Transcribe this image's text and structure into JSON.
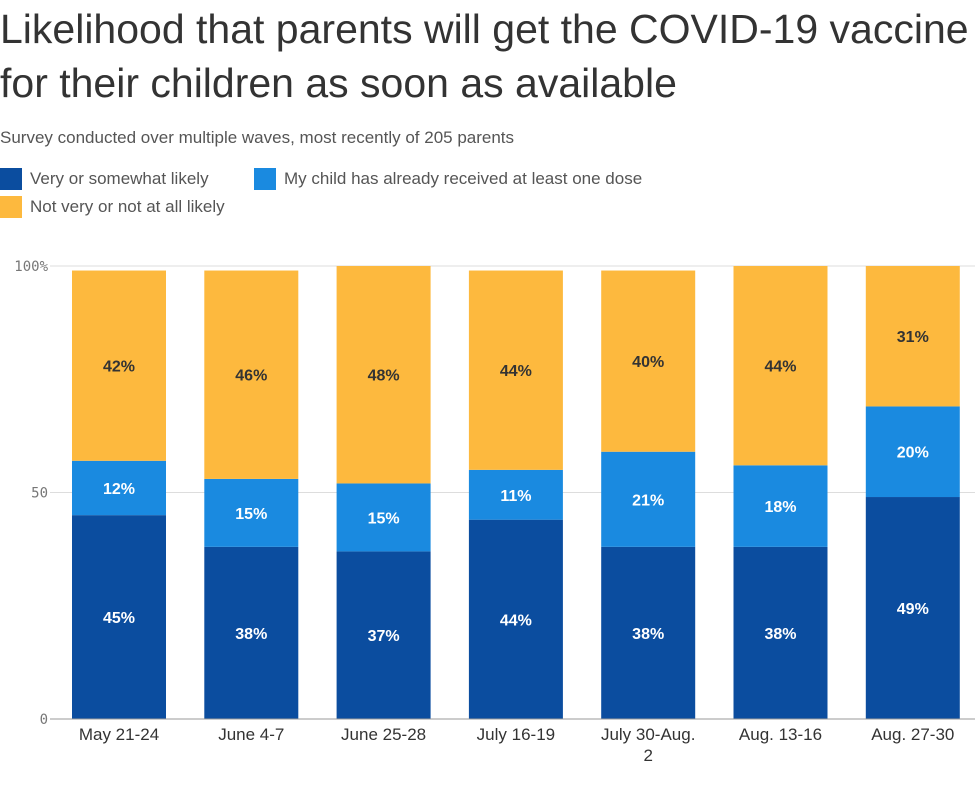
{
  "chart_data": {
    "type": "bar",
    "stacked": true,
    "title": "Likelihood that parents will get the COVID-19 vaccine for their children as soon as available",
    "subtitle": "Survey conducted over multiple waves, most recently of 205 parents",
    "xlabel": "",
    "ylabel": "",
    "ylim": [
      0,
      100
    ],
    "yticks": [
      "0",
      "50",
      "100%"
    ],
    "grid": true,
    "legend_position": "top-left",
    "categories": [
      "May 21-24",
      "June 4-7",
      "June 25-28",
      "July 16-19",
      "July 30-Aug. 2",
      "Aug. 13-16",
      "Aug. 27-30"
    ],
    "series": [
      {
        "name": "Very or somewhat likely",
        "color": "#0b4d9f",
        "label_color": "#ffffff",
        "values": [
          45,
          38,
          37,
          44,
          38,
          38,
          49
        ],
        "labels": [
          "45%",
          "38%",
          "37%",
          "44%",
          "38%",
          "38%",
          "49%"
        ]
      },
      {
        "name": "My child has already received at least one dose",
        "color": "#1a8ae0",
        "label_color": "#ffffff",
        "values": [
          12,
          15,
          15,
          11,
          21,
          18,
          20
        ],
        "labels": [
          "12%",
          "15%",
          "15%",
          "11%",
          "21%",
          "18%",
          "20%"
        ]
      },
      {
        "name": "Not very or not at all likely",
        "color": "#fdb93e",
        "label_color": "#333333",
        "values": [
          42,
          46,
          48,
          44,
          40,
          44,
          31
        ],
        "labels": [
          "42%",
          "46%",
          "48%",
          "44%",
          "40%",
          "44%",
          "31%"
        ]
      }
    ]
  }
}
